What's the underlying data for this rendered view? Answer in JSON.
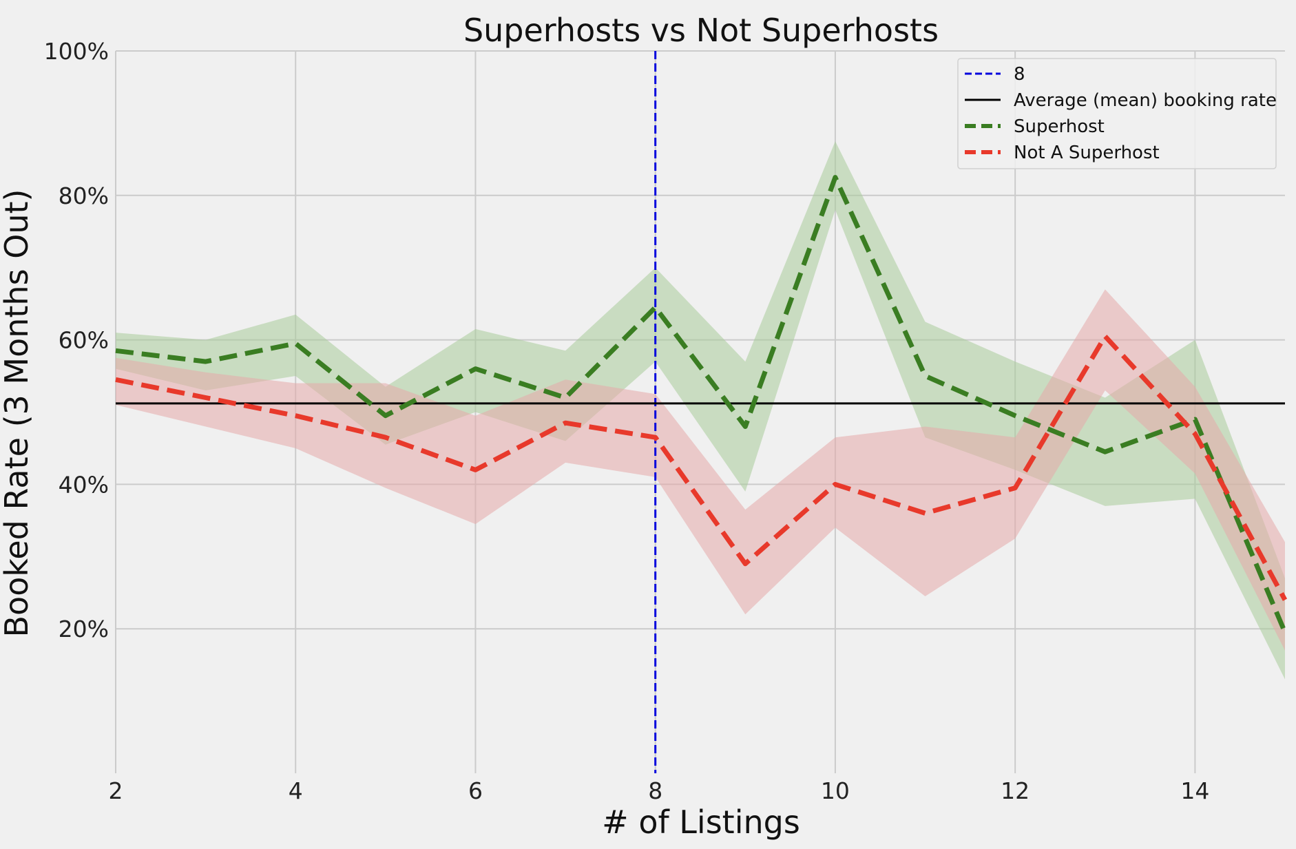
{
  "chart_data": {
    "type": "line",
    "title": "Superhosts vs Not Superhosts",
    "xlabel": "# of Listings",
    "ylabel": "Booked Rate (3 Months Out)",
    "xlim": [
      2,
      15
    ],
    "ylim": [
      0,
      100
    ],
    "x_ticks": [
      2,
      4,
      6,
      8,
      10,
      12,
      14
    ],
    "x_tick_labels": [
      "2",
      "4",
      "6",
      "8",
      "10",
      "12",
      "14"
    ],
    "y_ticks": [
      20,
      40,
      60,
      80,
      100
    ],
    "y_tick_labels": [
      "20%",
      "40%",
      "60%",
      "80%",
      "100%"
    ],
    "grid": true,
    "legend_position": "top-right",
    "x": [
      2,
      3,
      4,
      5,
      6,
      7,
      8,
      9,
      10,
      11,
      12,
      13,
      14,
      15
    ],
    "series": [
      {
        "name": "Superhost",
        "style": "dashed",
        "color": "#3a7d22",
        "band_color": "#a9cc9a",
        "values": [
          58.5,
          57,
          59.5,
          49.5,
          56,
          52,
          64.5,
          48,
          82.5,
          55,
          49.5,
          44.5,
          49,
          19.5
        ],
        "lower": [
          56,
          53,
          55,
          45.5,
          50,
          46,
          57,
          39,
          78,
          46.5,
          42,
          37,
          38,
          13
        ],
        "upper": [
          61,
          60,
          63.5,
          53.5,
          61.5,
          58.5,
          70,
          57,
          87.5,
          62.5,
          57,
          52,
          60,
          27
        ]
      },
      {
        "name": "Not A Superhost",
        "style": "dashed",
        "color": "#e8392b",
        "band_color": "#e6a9a9",
        "values": [
          54.5,
          52,
          49.5,
          46.5,
          42,
          48.5,
          46.5,
          29,
          40,
          36,
          39.5,
          60.5,
          47,
          24
        ],
        "lower": [
          51,
          48,
          45,
          39.5,
          34.5,
          43,
          41,
          22,
          34,
          24.5,
          32.5,
          53,
          41.5,
          17
        ],
        "upper": [
          57.5,
          55.5,
          54,
          54,
          49.5,
          54.5,
          52.5,
          36.5,
          46.5,
          48,
          46.5,
          67,
          53.5,
          32
        ]
      }
    ],
    "reference_lines": [
      {
        "name": "8",
        "orientation": "vertical",
        "value": 8,
        "style": "dashed",
        "color": "#0000dd"
      },
      {
        "name": "Average (mean) booking rate",
        "orientation": "horizontal",
        "value": 51.2,
        "style": "solid",
        "color": "#000000"
      }
    ],
    "legend": [
      "8",
      "Average (mean) booking rate",
      "Superhost",
      "Not A Superhost"
    ]
  }
}
